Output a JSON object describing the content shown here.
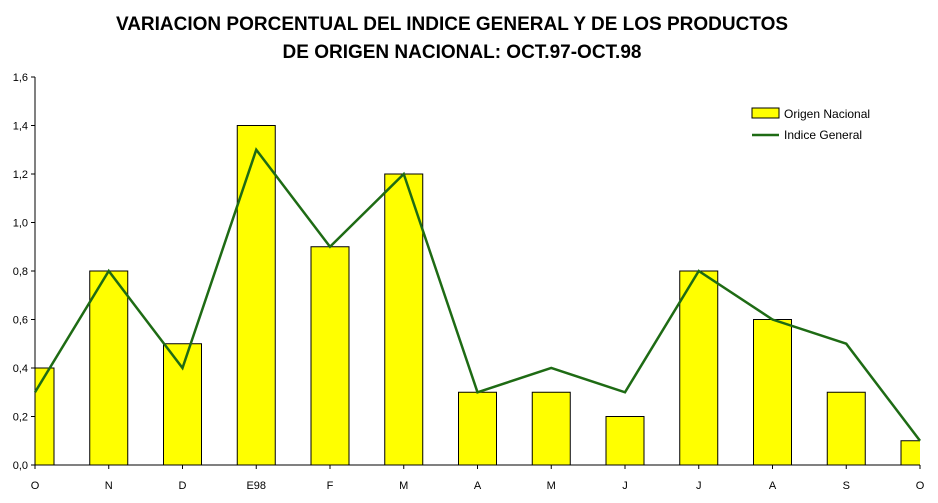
{
  "chart_data": {
    "type": "bar",
    "title_line1": "VARIACION PORCENTUAL DEL INDICE GENERAL Y DE LOS PRODUCTOS",
    "title_line2": "DE ORIGEN NACIONAL: OCT.97-OCT.98",
    "categories": [
      "O",
      "N",
      "D",
      "E98",
      "F",
      "M",
      "A",
      "M",
      "J",
      "J",
      "A",
      "S",
      "O"
    ],
    "ylim": [
      0,
      1.6
    ],
    "yticks": [
      "0,0",
      "0,2",
      "0,4",
      "0,6",
      "0,8",
      "1,0",
      "1,2",
      "1,4",
      "1,6"
    ],
    "grid": false,
    "legend_position": "top-right",
    "series": [
      {
        "name": "Origen Nacional",
        "type": "bar",
        "color": "#ffff00",
        "values": [
          0.4,
          0.8,
          0.5,
          1.4,
          0.9,
          1.2,
          0.3,
          0.3,
          0.2,
          0.8,
          0.6,
          0.3,
          0.1
        ]
      },
      {
        "name": "Indice General",
        "type": "line",
        "color": "#1e6b14",
        "values": [
          0.3,
          0.8,
          0.4,
          1.3,
          0.9,
          1.2,
          0.3,
          0.4,
          0.3,
          0.8,
          0.6,
          0.5,
          0.1
        ]
      }
    ]
  }
}
